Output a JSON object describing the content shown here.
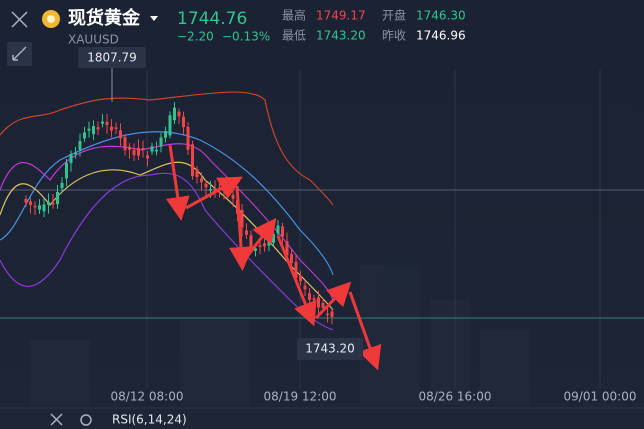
{
  "header": {
    "name": "现货黄金",
    "symbol": "XAUUSD",
    "price": "1744.76",
    "change": "−2.20",
    "change_pct": "−0.13%",
    "stats": [
      {
        "label": "最高",
        "value": "1749.17"
      },
      {
        "label": "开盘",
        "value": "1746.30"
      },
      {
        "label": "最低",
        "value": "1743.20"
      },
      {
        "label": "昨收",
        "value": "1746.96"
      }
    ]
  },
  "chart": {
    "high_marker": "1807.79",
    "last_marker": "1743.20",
    "x_labels": [
      "08/12 08:00",
      "08/19 12:00",
      "08/26 16:00",
      "09/01 00:00"
    ]
  },
  "indicator": {
    "label": "RSI(6,14,24)"
  }
}
